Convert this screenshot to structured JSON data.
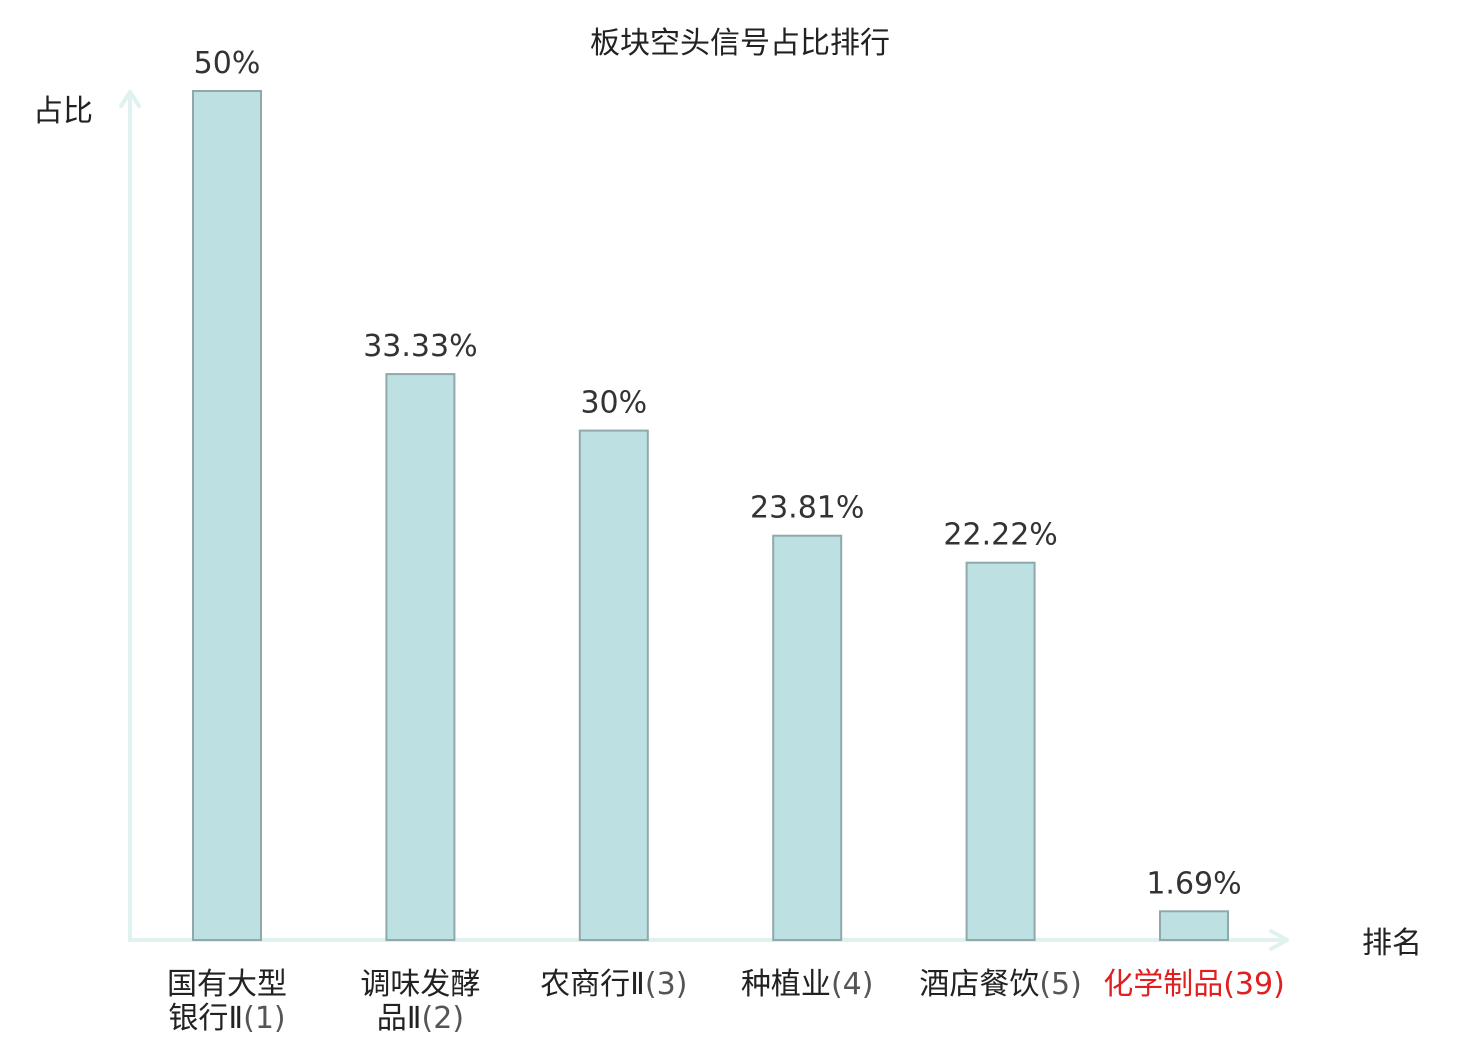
{
  "chart_data": {
    "type": "bar",
    "title": "板块空头信号占比排行",
    "ylabel": "占比",
    "xlabel": "排名",
    "ylim": [
      0,
      50
    ],
    "grid": false,
    "legend": false,
    "categories": [
      {
        "name_lines": [
          "国有大型",
          "银行Ⅱ"
        ],
        "rank": "(1)",
        "highlight": false
      },
      {
        "name_lines": [
          "调味发酵",
          "品Ⅱ"
        ],
        "rank": "(2)",
        "highlight": false
      },
      {
        "name_lines": [
          "农商行Ⅱ"
        ],
        "rank": "(3)",
        "highlight": false
      },
      {
        "name_lines": [
          "种植业"
        ],
        "rank": "(4)",
        "highlight": false
      },
      {
        "name_lines": [
          "酒店餐饮"
        ],
        "rank": "(5)",
        "highlight": false
      },
      {
        "name_lines": [
          "化学制品"
        ],
        "rank": "(39)",
        "highlight": true
      }
    ],
    "values": [
      50,
      33.33,
      30,
      23.81,
      22.22,
      1.69
    ],
    "value_labels": [
      "50%",
      "33.33%",
      "30%",
      "23.81%",
      "22.22%",
      "1.69%"
    ]
  },
  "colors": {
    "bar_fill": "#bde0e3",
    "bar_stroke": "#8fa9ab",
    "axis": "#e0f2ef",
    "text": "#222222",
    "value_text": "#333333",
    "rank_text": "#555555",
    "highlight": "#e02020"
  }
}
